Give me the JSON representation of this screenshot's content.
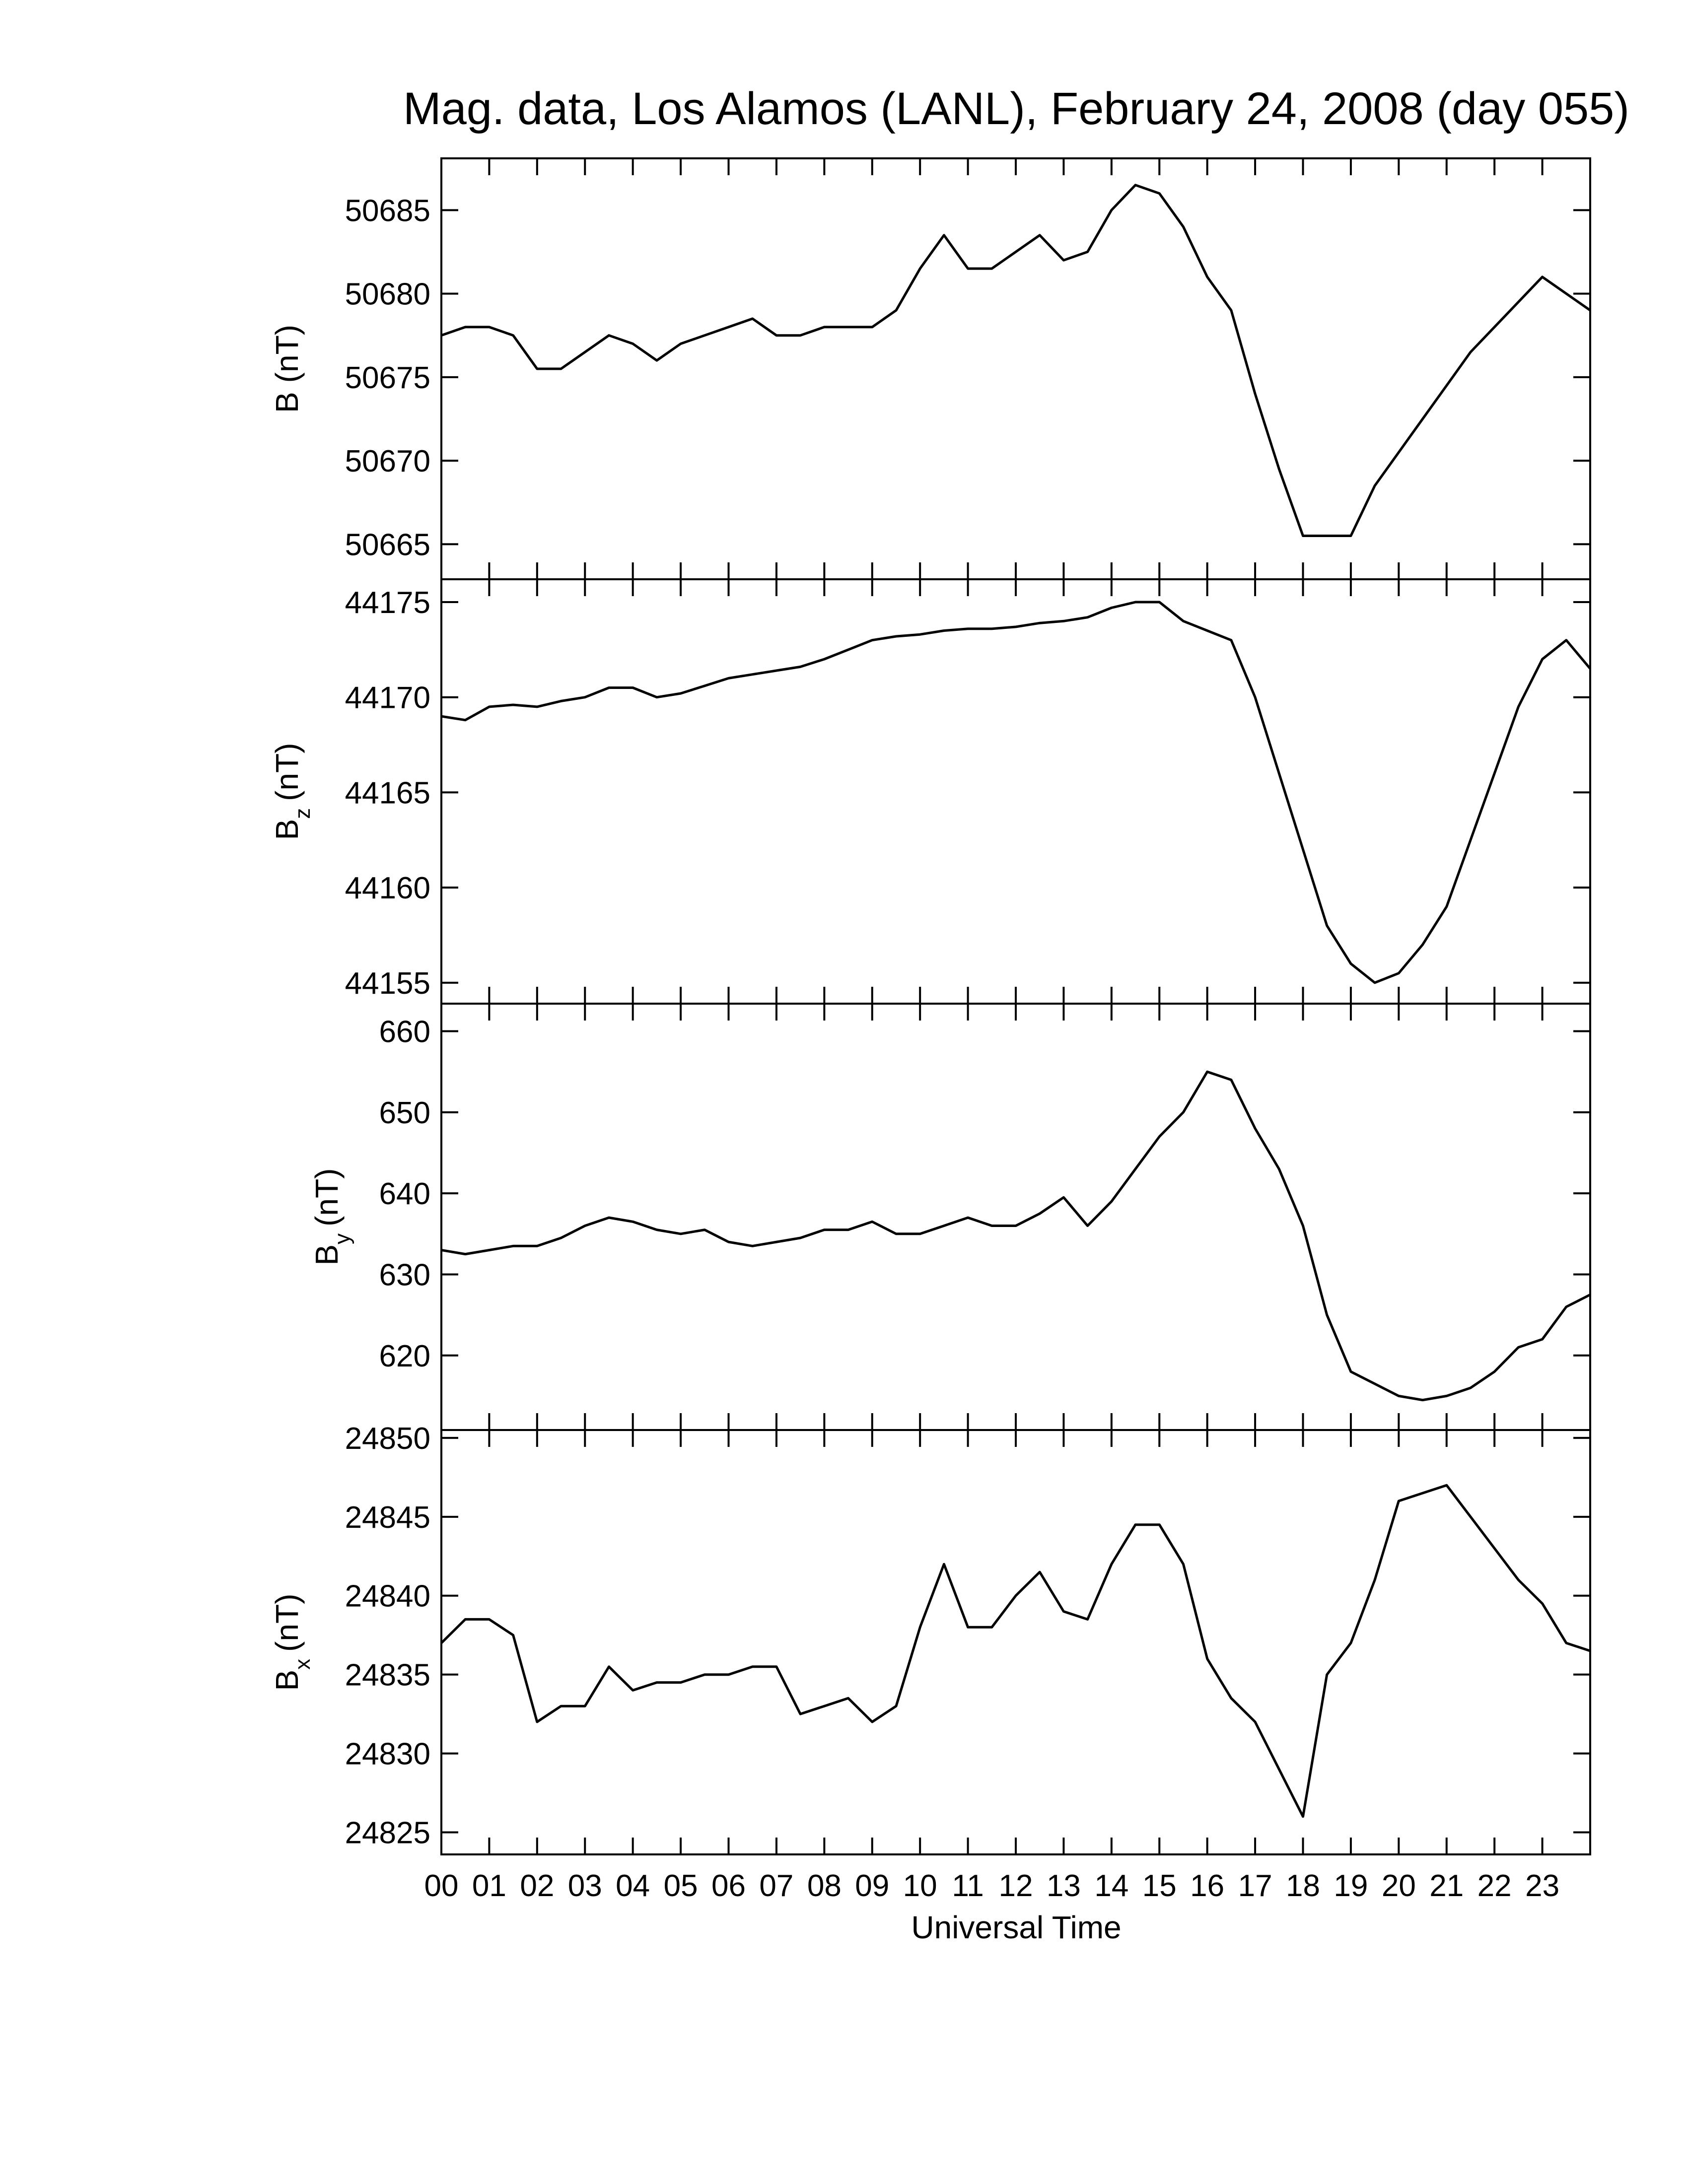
{
  "chart_data": [
    {
      "type": "line",
      "title": "Mag. data, Los Alamos (LANL), February 24, 2008 (day 055)",
      "ylabel": [
        "B",
        "(nT)"
      ],
      "color": "#000000",
      "x": [
        0,
        0.5,
        1,
        1.5,
        2,
        2.5,
        3,
        3.5,
        4,
        4.5,
        5,
        5.5,
        6,
        6.5,
        7,
        7.5,
        8,
        8.5,
        9,
        9.5,
        10,
        10.5,
        11,
        11.5,
        12,
        12.5,
        13,
        13.5,
        14,
        14.5,
        15,
        15.5,
        16,
        16.5,
        17,
        17.5,
        18,
        18.5,
        19,
        19.5,
        20,
        20.5,
        21,
        21.5,
        22,
        22.5,
        23,
        23.5,
        24
      ],
      "values": [
        50677.5,
        50678,
        50678,
        50677.5,
        50675.5,
        50675.5,
        50676.5,
        50677.5,
        50677,
        50676,
        50677,
        50677.5,
        50678,
        50678.5,
        50677.5,
        50677.5,
        50678,
        50678,
        50678,
        50679,
        50681.5,
        50683.5,
        50681.5,
        50681.5,
        50682.5,
        50683.5,
        50682,
        50682.5,
        50685,
        50686.5,
        50686,
        50684,
        50681,
        50679,
        50674,
        50669.5,
        50665.5,
        50665.5,
        50665.5,
        50668.5,
        50670.5,
        50672.5,
        50674.5,
        50676.5,
        50678,
        50679.5,
        50681,
        50680,
        50679
      ],
      "xlim": [
        0,
        24
      ],
      "ylim": [
        50662.9,
        50688.1
      ],
      "yticks": [
        50665,
        50670,
        50675,
        50680,
        50685
      ]
    },
    {
      "type": "line",
      "ylabel": [
        "B",
        "z",
        "(nT)"
      ],
      "color": "#000000",
      "x": [
        0,
        0.5,
        1,
        1.5,
        2,
        2.5,
        3,
        3.5,
        4,
        4.5,
        5,
        5.5,
        6,
        6.5,
        7,
        7.5,
        8,
        8.5,
        9,
        9.5,
        10,
        10.5,
        11,
        11.5,
        12,
        12.5,
        13,
        13.5,
        14,
        14.5,
        15,
        15.5,
        16,
        16.5,
        17,
        17.5,
        18,
        18.5,
        19,
        19.5,
        20,
        20.5,
        21,
        21.5,
        22,
        22.5,
        23,
        23.5,
        24
      ],
      "values": [
        44169,
        44168.8,
        44169.5,
        44169.6,
        44169.5,
        44169.8,
        44170,
        44170.5,
        44170.5,
        44170,
        44170.2,
        44170.6,
        44171,
        44171.2,
        44171.4,
        44171.6,
        44172,
        44172.5,
        44173,
        44173.2,
        44173.3,
        44173.5,
        44173.6,
        44173.6,
        44173.7,
        44173.9,
        44174,
        44174.2,
        44174.7,
        44175,
        44175,
        44174,
        44173.5,
        44173,
        44170,
        44166,
        44162,
        44158,
        44156,
        44155,
        44155.5,
        44157,
        44159,
        44162.5,
        44166,
        44169.5,
        44172,
        44173,
        44171.5
      ],
      "xlim": [
        0,
        24
      ],
      "ylim": [
        44153.9,
        44176.2
      ],
      "yticks": [
        44155,
        44160,
        44165,
        44170,
        44175
      ]
    },
    {
      "type": "line",
      "ylabel": [
        "B",
        "y",
        "(nT)"
      ],
      "color": "#000000",
      "x": [
        0,
        0.5,
        1,
        1.5,
        2,
        2.5,
        3,
        3.5,
        4,
        4.5,
        5,
        5.5,
        6,
        6.5,
        7,
        7.5,
        8,
        8.5,
        9,
        9.5,
        10,
        10.5,
        11,
        11.5,
        12,
        12.5,
        13,
        13.5,
        14,
        14.5,
        15,
        15.5,
        16,
        16.5,
        17,
        17.5,
        18,
        18.5,
        19,
        19.5,
        20,
        20.5,
        21,
        21.5,
        22,
        22.5,
        23,
        23.5,
        24
      ],
      "values": [
        633,
        632.5,
        633,
        633.5,
        633.5,
        634.5,
        636,
        637,
        636.5,
        635.5,
        635,
        635.5,
        634,
        633.5,
        634,
        634.5,
        635.5,
        635.5,
        636.5,
        635,
        635,
        636,
        637,
        636,
        636,
        637.5,
        639.5,
        636,
        639,
        643,
        647,
        650,
        655,
        654,
        648,
        643,
        636,
        625,
        618,
        616.5,
        615,
        614.5,
        615,
        616,
        618,
        621,
        622,
        626,
        627.5
      ],
      "xlim": [
        0,
        24
      ],
      "ylim": [
        610.8,
        663.4
      ],
      "yticks": [
        620,
        630,
        640,
        650,
        660
      ]
    },
    {
      "type": "line",
      "ylabel": [
        "B",
        "x",
        "(nT)"
      ],
      "xlabel": "Universal Time",
      "color": "#000000",
      "x": [
        0,
        0.5,
        1,
        1.5,
        2,
        2.5,
        3,
        3.5,
        4,
        4.5,
        5,
        5.5,
        6,
        6.5,
        7,
        7.5,
        8,
        8.5,
        9,
        9.5,
        10,
        10.5,
        11,
        11.5,
        12,
        12.5,
        13,
        13.5,
        14,
        14.5,
        15,
        15.5,
        16,
        16.5,
        17,
        17.5,
        18,
        18.5,
        19,
        19.5,
        20,
        20.5,
        21,
        21.5,
        22,
        22.5,
        23,
        23.5,
        24
      ],
      "values": [
        24837,
        24838.5,
        24838.5,
        24837.5,
        24832,
        24833,
        24833,
        24835.5,
        24834,
        24834.5,
        24834.5,
        24835,
        24835,
        24835.5,
        24835.5,
        24832.5,
        24833,
        24833.5,
        24832,
        24833,
        24838,
        24842,
        24838,
        24838,
        24840,
        24841.5,
        24839,
        24838.5,
        24842,
        24844.5,
        24844.5,
        24842,
        24836,
        24833.5,
        24832,
        24829,
        24826,
        24835,
        24837,
        24841,
        24846,
        24846.5,
        24847,
        24845,
        24843,
        24841,
        24839.5,
        24837,
        24836.5
      ],
      "xlim": [
        0,
        24
      ],
      "ylim": [
        24823.6,
        24850.5
      ],
      "yticks": [
        24825,
        24830,
        24835,
        24840,
        24845,
        24850
      ],
      "xticks": [
        {
          "value": 0,
          "label": "00"
        },
        {
          "value": 1,
          "label": "01"
        },
        {
          "value": 2,
          "label": "02"
        },
        {
          "value": 3,
          "label": "03"
        },
        {
          "value": 4,
          "label": "04"
        },
        {
          "value": 5,
          "label": "05"
        },
        {
          "value": 6,
          "label": "06"
        },
        {
          "value": 7,
          "label": "07"
        },
        {
          "value": 8,
          "label": "08"
        },
        {
          "value": 9,
          "label": "09"
        },
        {
          "value": 10,
          "label": "10"
        },
        {
          "value": 11,
          "label": "11"
        },
        {
          "value": 12,
          "label": "12"
        },
        {
          "value": 13,
          "label": "13"
        },
        {
          "value": 14,
          "label": "14"
        },
        {
          "value": 15,
          "label": "15"
        },
        {
          "value": 16,
          "label": "16"
        },
        {
          "value": 17,
          "label": "17"
        },
        {
          "value": 18,
          "label": "18"
        },
        {
          "value": 19,
          "label": "19"
        },
        {
          "value": 20,
          "label": "20"
        },
        {
          "value": 21,
          "label": "21"
        },
        {
          "value": 22,
          "label": "22"
        },
        {
          "value": 23,
          "label": "23"
        }
      ]
    }
  ]
}
